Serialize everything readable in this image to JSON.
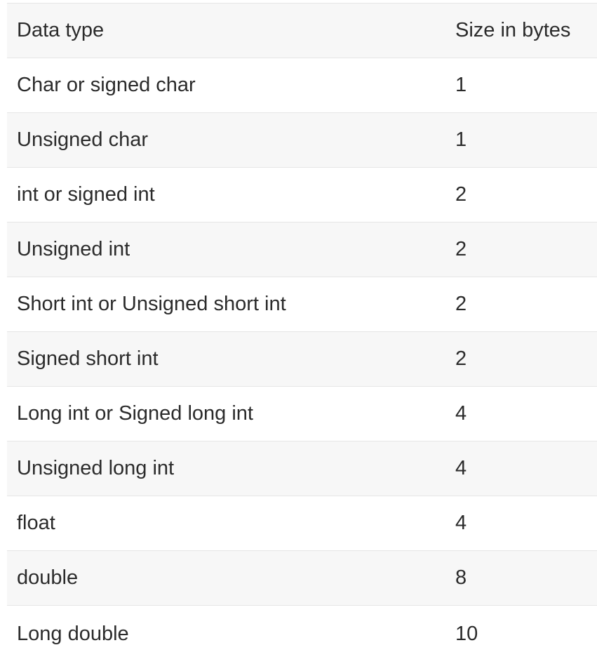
{
  "table": {
    "headers": {
      "type": "Data type",
      "size": "Size in bytes"
    },
    "rows": [
      {
        "type": "Char or signed char",
        "size": "1"
      },
      {
        "type": "Unsigned char",
        "size": "1"
      },
      {
        "type": "int or signed int",
        "size": "2"
      },
      {
        "type": "Unsigned int",
        "size": "2"
      },
      {
        "type": "Short int or Unsigned short int",
        "size": "2"
      },
      {
        "type": "Signed short int",
        "size": "2"
      },
      {
        "type": "Long int or Signed long int",
        "size": "4"
      },
      {
        "type": "Unsigned long int",
        "size": "4"
      },
      {
        "type": "float",
        "size": "4"
      },
      {
        "type": "double",
        "size": "8"
      },
      {
        "type": "Long double",
        "size": "10"
      }
    ]
  },
  "colors": {
    "header_bg": "#f7f7f7",
    "alt_row_bg": "#f7f7f7",
    "row_bg": "#ffffff",
    "divider": "#e6e6e6",
    "text": "#2b2b2b"
  }
}
